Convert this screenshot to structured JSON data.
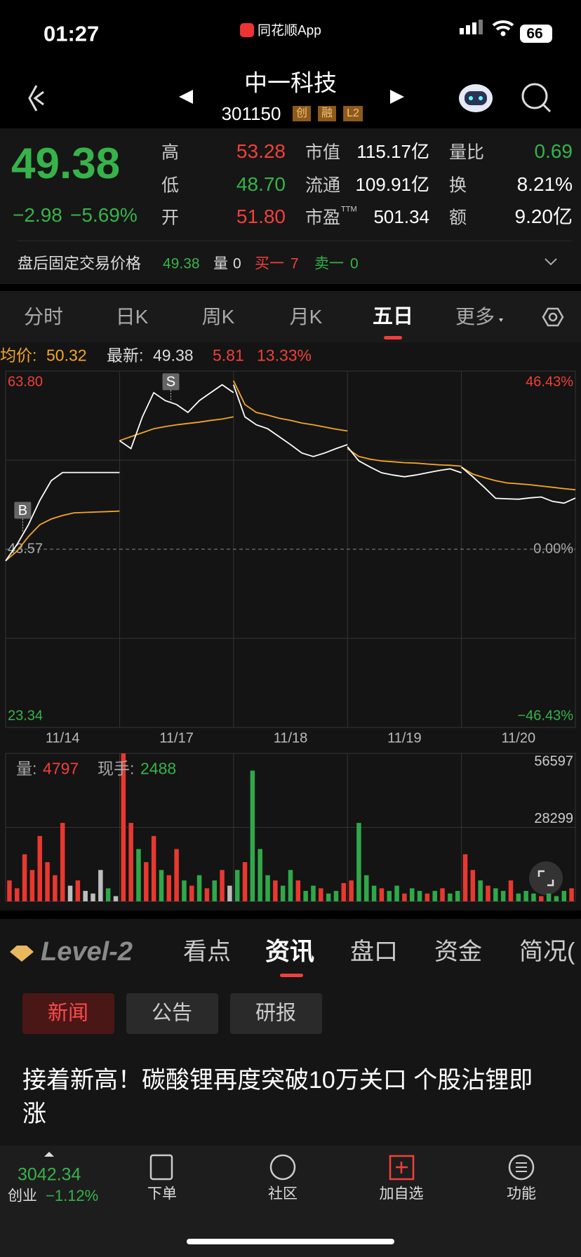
{
  "status_bar": {
    "time": "01:27",
    "app": "同花顺App",
    "battery": "66"
  },
  "header": {
    "name": "中一科技",
    "code": "301150",
    "badges": [
      "创",
      "融",
      "L2"
    ]
  },
  "quote": {
    "price": "49.38",
    "change": "−2.98",
    "change_pct": "−5.69%",
    "fields": [
      {
        "label": "高",
        "value": "53.28"
      },
      {
        "label": "低",
        "value": "48.70"
      },
      {
        "label": "开",
        "value": "51.80"
      },
      {
        "label": "市值",
        "value": "115.17亿"
      },
      {
        "label": "流通",
        "value": "109.91亿"
      },
      {
        "label": "市盈",
        "label_sup": "TTM",
        "value": "501.34"
      },
      {
        "label": "量比",
        "value": "0.69"
      },
      {
        "label": "换",
        "value": "8.21%"
      },
      {
        "label": "额",
        "value": "9.20亿"
      }
    ]
  },
  "after_hours": {
    "label": "盘后固定交易价格",
    "price": "49.38",
    "volume_label": "量",
    "volume": "0",
    "bid_label": "买一",
    "bid": "7",
    "ask_label": "卖一",
    "ask": "0"
  },
  "tabs": [
    "分时",
    "日K",
    "周K",
    "月K",
    "五日",
    "更多"
  ],
  "chart_info": {
    "avg_label": "均价:",
    "avg": "50.32",
    "latest_label": "最新:",
    "latest": "49.38",
    "change": "5.81",
    "change_pct": "13.33%"
  },
  "chart_data": [
    {
      "type": "line",
      "xlim": [
        0,
        5
      ],
      "xticks": [
        {
          "value": 0.5,
          "label": "11/14"
        },
        {
          "value": 1.5,
          "label": "11/17"
        },
        {
          "value": 2.5,
          "label": "11/18"
        },
        {
          "value": 3.5,
          "label": "11/19"
        },
        {
          "value": 4.5,
          "label": "11/20"
        }
      ],
      "ylim": [
        23.34,
        63.8
      ],
      "yticks": [
        {
          "value": 63.8,
          "label": "63.80"
        },
        {
          "value": 53.685,
          "label": null
        },
        {
          "value": 43.57,
          "label": "43.57"
        },
        {
          "value": 33.455,
          "label": null
        },
        {
          "value": 23.34,
          "label": "23.34"
        }
      ],
      "y2lim": [
        -46.43,
        46.43
      ],
      "y2ticks": [
        {
          "value": 46.43,
          "label": "46.43%"
        },
        {
          "value": 0,
          "label": "0.00%"
        },
        {
          "value": -46.43,
          "label": "−46.43%"
        }
      ],
      "grid": true,
      "x": [
        0,
        0.1,
        0.2,
        0.3,
        0.4,
        0.5,
        0.6,
        0.7,
        0.8,
        0.9,
        1,
        null,
        1,
        1.1,
        1.2,
        1.3,
        1.4,
        1.5,
        1.6,
        1.7,
        1.8,
        1.9,
        2,
        null,
        2,
        2.1,
        2.2,
        2.3,
        2.4,
        2.5,
        2.6,
        2.7,
        2.8,
        2.9,
        3,
        null,
        3,
        3.1,
        3.2,
        3.3,
        3.4,
        3.5,
        3.6,
        3.7,
        3.8,
        3.9,
        4,
        null,
        4,
        4.1,
        4.2,
        4.3,
        4.4,
        4.5,
        4.6,
        4.7,
        4.8,
        4.9,
        5
      ],
      "series": [
        {
          "color": "#ffffff",
          "values": [
            42.25,
            44.1,
            46.35,
            49.1,
            51.35,
            52.28,
            52.28,
            52.28,
            52.28,
            52.28,
            52.28,
            null,
            55.9,
            55.0,
            58.6,
            61.35,
            60.45,
            60.0,
            59.1,
            60.45,
            61.35,
            62.25,
            61.35,
            null,
            62.25,
            58.6,
            57.7,
            57.25,
            56.35,
            55.45,
            54.5,
            54.1,
            54.5,
            55.0,
            55.45,
            null,
            55.2,
            53.6,
            52.9,
            52.25,
            52.0,
            51.8,
            52.0,
            52.25,
            52.5,
            52.7,
            52.25,
            null,
            52.9,
            51.8,
            50.6,
            49.35,
            49.3,
            49.25,
            49.4,
            49.5,
            49.0,
            48.8,
            49.38
          ]
        },
        {
          "color": "#f5a623",
          "values": [
            42.25,
            43.35,
            45.0,
            46.35,
            47.0,
            47.4,
            47.7,
            47.75,
            47.8,
            47.85,
            47.9,
            null,
            55.9,
            56.35,
            56.8,
            57.25,
            57.5,
            57.7,
            57.85,
            58.0,
            58.2,
            58.35,
            58.6,
            null,
            62.7,
            60.0,
            59.1,
            58.8,
            58.45,
            58.2,
            57.9,
            57.7,
            57.45,
            57.2,
            57.0,
            null,
            55.0,
            54.1,
            53.8,
            53.6,
            53.5,
            53.4,
            53.35,
            53.25,
            53.15,
            53.1,
            53.0,
            null,
            52.9,
            52.1,
            51.7,
            51.35,
            51.1,
            51.0,
            50.9,
            50.75,
            50.6,
            50.45,
            50.32
          ]
        }
      ],
      "annotations": [
        {
          "label": "B",
          "x": 0.15,
          "y": 45.6
        },
        {
          "label": "S",
          "x": 1.45,
          "y": 60.2
        }
      ]
    },
    {
      "type": "bar",
      "ylim": [
        0,
        56597
      ],
      "yticks": [
        28299,
        56597
      ],
      "grid": true,
      "values": [
        8000,
        5000,
        18000,
        12000,
        25000,
        15000,
        10000,
        30000,
        6000,
        8000,
        4000,
        3000,
        12000,
        5000,
        2000,
        56597,
        30000,
        20000,
        15000,
        25000,
        12000,
        10000,
        20000,
        8000,
        6000,
        10000,
        5000,
        8000,
        12000,
        6000,
        12000,
        15000,
        50000,
        20000,
        10000,
        8000,
        6000,
        12000,
        8000,
        4000,
        6000,
        5000,
        3000,
        4000,
        7000,
        8000,
        30000,
        10000,
        6000,
        5000,
        4000,
        6000,
        3000,
        5000,
        4000,
        3000,
        4000,
        5000,
        3000,
        4000,
        18000,
        12000,
        8000,
        6000,
        5000,
        4000,
        8000,
        3000,
        4000,
        3000,
        2000,
        3000,
        2000,
        4000,
        5000
      ],
      "colors": [
        "#e8382f",
        "#e8382f",
        "#e8382f",
        "#e8382f",
        "#e8382f",
        "#e8382f",
        "#e8382f",
        "#e8382f",
        "#bdbdbd",
        "#e8382f",
        "#bdbdbd",
        "#bdbdbd",
        "#bdbdbd",
        "#2fa84a",
        "#bdbdbd",
        "#e8382f",
        "#e8382f",
        "#2fa84a",
        "#e8382f",
        "#e8382f",
        "#2fa84a",
        "#e8382f",
        "#e8382f",
        "#2fa84a",
        "#e8382f",
        "#2fa84a",
        "#e8382f",
        "#2fa84a",
        "#e8382f",
        "#bdbdbd",
        "#2fa84a",
        "#e8382f",
        "#2fa84a",
        "#2fa84a",
        "#2fa84a",
        "#e8382f",
        "#2fa84a",
        "#2fa84a",
        "#e8382f",
        "#2fa84a",
        "#2fa84a",
        "#e8382f",
        "#2fa84a",
        "#2fa84a",
        "#e8382f",
        "#e8382f",
        "#2fa84a",
        "#2fa84a",
        "#2fa84a",
        "#e8382f",
        "#2fa84a",
        "#2fa84a",
        "#e8382f",
        "#2fa84a",
        "#2fa84a",
        "#e8382f",
        "#2fa84a",
        "#e8382f",
        "#2fa84a",
        "#2fa84a",
        "#e8382f",
        "#e8382f",
        "#2fa84a",
        "#e8382f",
        "#2fa84a",
        "#2fa84a",
        "#e8382f",
        "#2fa84a",
        "#2fa84a",
        "#2fa84a",
        "#e8382f",
        "#2fa84a",
        "#2fa84a",
        "#2fa84a",
        "#e8382f"
      ]
    }
  ],
  "volume_info": {
    "volume_label": "量:",
    "volume": "4797",
    "hand_label": "现手:",
    "hand": "2488"
  },
  "news_section": {
    "brand": "Level-2",
    "tabs": [
      "看点",
      "资讯",
      "盘口",
      "资金",
      "简况("
    ],
    "sub_tabs": [
      "新闻",
      "公告",
      "研报"
    ],
    "headline": "接着新高！碳酸锂再度突破10万关口 个股沾锂即涨"
  },
  "bottom_nav": {
    "index_value": "3042.34",
    "index_name": "创业",
    "index_change": "−1.12%",
    "items": [
      "下单",
      "社区",
      "加自选",
      "功能"
    ]
  }
}
